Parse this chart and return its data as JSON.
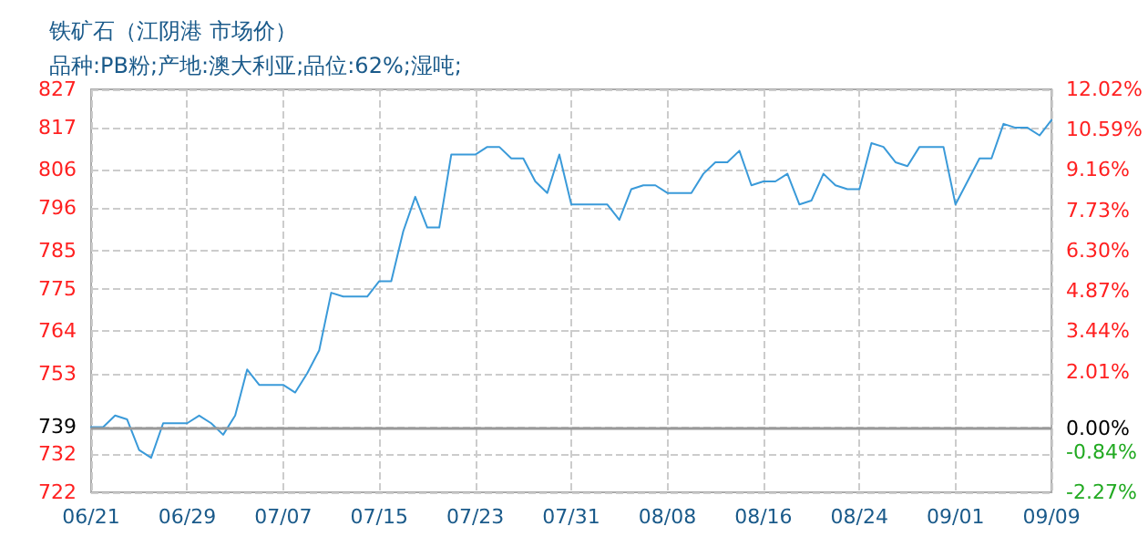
{
  "chart_data": {
    "type": "line",
    "title": "铁矿石（江阴港 市场价）",
    "subtitle": "品种:PB粉;产地:澳大利亚;品位:62%;湿吨;",
    "x": [
      "--06-21",
      "--06-22",
      "--06-23",
      "--06-24",
      "--06-25",
      "--06-26",
      "--06-27",
      "--06-29",
      "--06-30",
      "--07-01",
      "--07-02",
      "--07-03",
      "--07-04",
      "--07-05",
      "--07-07",
      "--07-08",
      "--07-09",
      "--07-10",
      "--07-11",
      "--07-12",
      "--07-14",
      "--07-15",
      "--07-16",
      "--07-17",
      "--07-18",
      "--07-19",
      "--07-20",
      "--07-21",
      "--07-23",
      "--07-24",
      "--07-25",
      "--07-26",
      "--07-27",
      "--07-28",
      "--07-29",
      "--07-30",
      "--07-31",
      "--08-03",
      "--08-04",
      "--08-05",
      "--08-06",
      "--08-07",
      "--08-08",
      "--08-10",
      "--08-11",
      "--08-12",
      "--08-13",
      "--08-14",
      "--08-15",
      "--08-16",
      "--08-17",
      "--08-18",
      "--08-19",
      "--08-20",
      "--08-21",
      "--08-22",
      "--08-23",
      "--08-24",
      "--08-25",
      "--08-26",
      "--08-27",
      "--08-28",
      "--08-29",
      "--08-31",
      "--09-01",
      "--09-02",
      "--09-03",
      "--09-04",
      "--09-05",
      "--09-06",
      "--09-07",
      "--09-08",
      "--09-09"
    ],
    "series": [
      {
        "color": "#3a9ad9",
        "values": [
          739,
          739,
          742,
          741,
          733,
          731,
          740,
          740,
          742,
          740,
          737,
          742,
          754,
          750,
          750,
          748,
          753,
          759,
          774,
          773,
          773,
          777,
          777,
          790,
          799,
          791,
          791,
          810,
          810,
          812,
          812,
          809,
          809,
          803,
          800,
          810,
          797,
          797,
          793,
          801,
          802,
          802,
          800,
          800,
          805,
          808,
          808,
          811,
          802,
          803,
          803,
          805,
          797,
          798,
          805,
          802,
          801,
          801,
          813,
          812,
          808,
          807,
          812,
          812,
          797,
          803,
          809,
          809,
          818,
          817,
          817,
          815,
          819
        ]
      }
    ],
    "xlim": [
      "--06-21",
      "--09-09"
    ],
    "xticks": [
      {
        "value": "--06-21",
        "label": "06/21"
      },
      {
        "value": "--06-29",
        "label": "06/29"
      },
      {
        "value": "--07-07",
        "label": "07/07"
      },
      {
        "value": "--07-15",
        "label": "07/15"
      },
      {
        "value": "--07-23",
        "label": "07/23"
      },
      {
        "value": "--07-31",
        "label": "07/31"
      },
      {
        "value": "--08-08",
        "label": "08/08"
      },
      {
        "value": "--08-16",
        "label": "08/16"
      },
      {
        "value": "--08-24",
        "label": "08/24"
      },
      {
        "value": "--09-01",
        "label": "09/01"
      },
      {
        "value": "--09-09",
        "label": "09/09"
      }
    ],
    "ylim": [
      722,
      827
    ],
    "yticks": [
      827,
      817,
      806,
      796,
      785,
      775,
      764,
      753,
      739,
      732,
      722
    ],
    "y2lim": [
      -2.27,
      12.02
    ],
    "y2ticks": [
      {
        "value": 12.02,
        "label": "12.02%"
      },
      {
        "value": 10.59,
        "label": "10.59%"
      },
      {
        "value": 9.16,
        "label": "9.16%"
      },
      {
        "value": 7.73,
        "label": "7.73%"
      },
      {
        "value": 6.3,
        "label": "6.30%"
      },
      {
        "value": 4.87,
        "label": "4.87%"
      },
      {
        "value": 3.44,
        "label": "3.44%"
      },
      {
        "value": 2.01,
        "label": "2.01%"
      },
      {
        "value": 0,
        "label": "0.00%"
      },
      {
        "value": -0.84,
        "label": "-0.84%"
      },
      {
        "value": -2.27,
        "label": "-2.27%"
      }
    ],
    "ref_lines": [
      {
        "axis": "y2",
        "value": 0,
        "color": "#999999"
      }
    ],
    "grid": true,
    "marker": "none",
    "line_style": "solid"
  }
}
